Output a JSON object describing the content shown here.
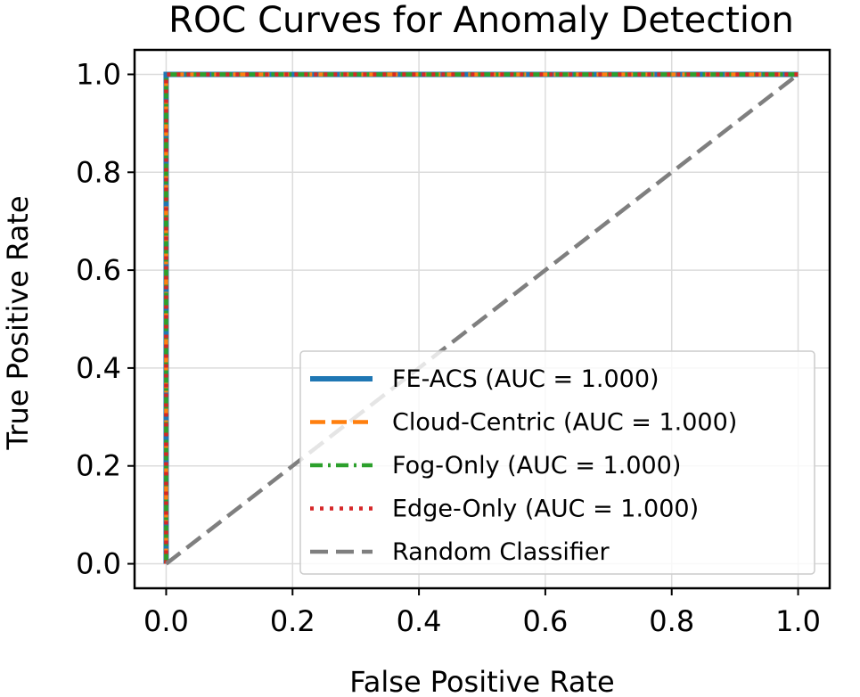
{
  "chart_data": {
    "type": "line",
    "title": "ROC Curves for Anomaly Detection",
    "xlabel": "False Positive Rate",
    "ylabel": "True Positive Rate",
    "xlim": [
      -0.05,
      1.05
    ],
    "ylim": [
      -0.05,
      1.05
    ],
    "xticks": [
      0.0,
      0.2,
      0.4,
      0.6,
      0.8,
      1.0
    ],
    "yticks": [
      0.0,
      0.2,
      0.4,
      0.6,
      0.8,
      1.0
    ],
    "xtick_labels": [
      "0.0",
      "0.2",
      "0.4",
      "0.6",
      "0.8",
      "1.0"
    ],
    "ytick_labels": [
      "0.0",
      "0.2",
      "0.4",
      "0.6",
      "0.8",
      "1.0"
    ],
    "grid": true,
    "legend_position": "lower-right",
    "series": [
      {
        "name": "FE-ACS (AUC = 1.000)",
        "color": "#1f77b4",
        "style": "solid",
        "x": [
          0.0,
          0.0,
          1.0
        ],
        "y": [
          0.0,
          1.0,
          1.0
        ]
      },
      {
        "name": "Cloud-Centric (AUC = 1.000)",
        "color": "#ff7f0e",
        "style": "dashed",
        "x": [
          0.0,
          0.0,
          1.0
        ],
        "y": [
          0.0,
          1.0,
          1.0
        ]
      },
      {
        "name": "Fog-Only (AUC = 1.000)",
        "color": "#2ca02c",
        "style": "dashdot",
        "x": [
          0.0,
          0.0,
          1.0
        ],
        "y": [
          0.0,
          1.0,
          1.0
        ]
      },
      {
        "name": "Edge-Only (AUC = 1.000)",
        "color": "#d62728",
        "style": "dotted",
        "x": [
          0.0,
          0.0,
          1.0
        ],
        "y": [
          0.0,
          1.0,
          1.0
        ]
      },
      {
        "name": "Random Classifier",
        "color": "#7f7f7f",
        "style": "dashed",
        "x": [
          0.0,
          1.0
        ],
        "y": [
          0.0,
          1.0
        ]
      }
    ]
  }
}
